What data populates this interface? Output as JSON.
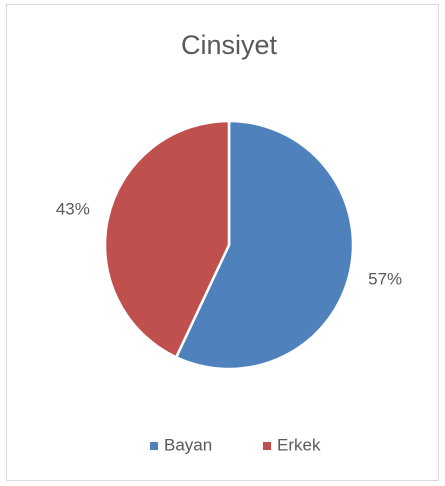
{
  "chart_data": {
    "type": "pie",
    "title": "Cinsiyet",
    "categories": [
      "Bayan",
      "Erkek"
    ],
    "values": [
      57,
      43
    ],
    "value_labels": [
      "57%",
      "43%"
    ],
    "colors": [
      "#4f81bd",
      "#c0504d"
    ],
    "legend": "bottom"
  }
}
